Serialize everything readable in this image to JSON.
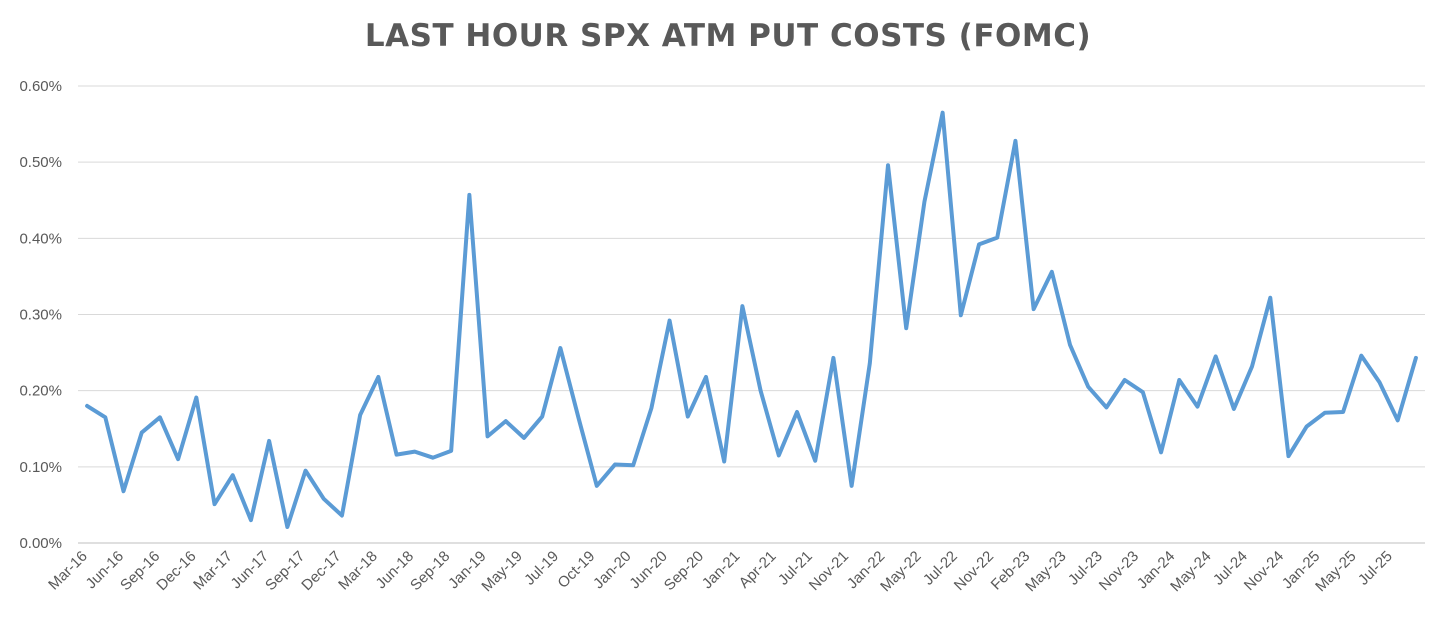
{
  "chart_data": {
    "type": "line",
    "title": "LAST HOUR SPX ATM PUT COSTS (FOMC)",
    "xlabel": "",
    "ylabel": "",
    "ylim": [
      0,
      0.6
    ],
    "y_ticks": [
      "0.00%",
      "0.10%",
      "0.20%",
      "0.30%",
      "0.40%",
      "0.50%",
      "0.60%"
    ],
    "y_tick_values": [
      0,
      0.1,
      0.2,
      0.3,
      0.4,
      0.5,
      0.6
    ],
    "grid": "horizontal",
    "legend": "none",
    "line_color": "#5b9bd5",
    "x_tick_labels": [
      "Mar-16",
      "Jun-16",
      "Sep-16",
      "Dec-16",
      "Mar-17",
      "Jun-17",
      "Sep-17",
      "Dec-17",
      "Mar-18",
      "Jun-18",
      "Sep-18",
      "Jan-19",
      "May-19",
      "Jul-19",
      "Oct-19",
      "Jan-20",
      "Jun-20",
      "Sep-20",
      "Jan-21",
      "Apr-21",
      "Jul-21",
      "Nov-21",
      "Jan-22",
      "May-22",
      "Jul-22",
      "Nov-22",
      "Feb-23",
      "May-23",
      "Jul-23",
      "Nov-23",
      "Jan-24",
      "May-24",
      "Jul-24",
      "Nov-24",
      "Jan-25",
      "May-25",
      "Jul-25"
    ],
    "series": [
      {
        "values": [
          0.18,
          0.165,
          0.068,
          0.145,
          0.165,
          0.11,
          0.191,
          0.051,
          0.089,
          0.03,
          0.134,
          0.021,
          0.095,
          0.058,
          0.036,
          0.168,
          0.218,
          0.116,
          0.12,
          0.112,
          0.121,
          0.457,
          0.14,
          0.16,
          0.138,
          0.166,
          0.256,
          0.164,
          0.075,
          0.103,
          0.102,
          0.177,
          0.292,
          0.166,
          0.218,
          0.107,
          0.311,
          0.2,
          0.115,
          0.172,
          0.108,
          0.243,
          0.075,
          0.236,
          0.496,
          0.282,
          0.448,
          0.565,
          0.299,
          0.392,
          0.401,
          0.528,
          0.307,
          0.356,
          0.26,
          0.205,
          0.178,
          0.214,
          0.198,
          0.119,
          0.214,
          0.179,
          0.245,
          0.176,
          0.232,
          0.322,
          0.114,
          0.153,
          0.171,
          0.172,
          0.246,
          0.211,
          0.161,
          0.243
        ]
      }
    ]
  }
}
